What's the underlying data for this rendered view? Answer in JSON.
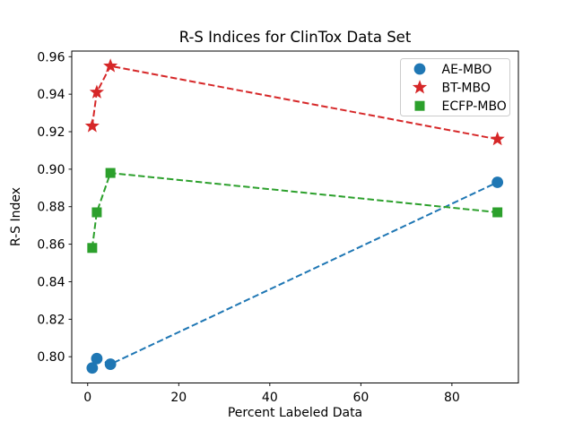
{
  "figure": {
    "background": "#ffffff"
  },
  "chart_data": {
    "type": "line",
    "title": "R-S Indices for ClinTox Data Set",
    "xlabel": "Percent Labeled Data",
    "ylabel": "R-S Index",
    "x": [
      1,
      2,
      5,
      90
    ],
    "series": [
      {
        "name": "AE-MBO",
        "color": "#1f77b4",
        "marker": "circle",
        "linestyle": "dashed",
        "values": [
          0.794,
          0.799,
          0.796,
          0.893
        ]
      },
      {
        "name": "BT-MBO",
        "color": "#d62728",
        "marker": "star",
        "linestyle": "dashed",
        "values": [
          0.923,
          0.941,
          0.955,
          0.916
        ]
      },
      {
        "name": "ECFP-MBO",
        "color": "#2ca02c",
        "marker": "square",
        "linestyle": "dashed",
        "values": [
          0.858,
          0.877,
          0.898,
          0.877
        ]
      }
    ],
    "xlim": [
      -3.5,
      94.6
    ],
    "ylim": [
      0.786,
      0.963
    ],
    "xticks": [
      0,
      20,
      40,
      60,
      80
    ],
    "xtick_labels": [
      "0",
      "20",
      "40",
      "60",
      "80"
    ],
    "yticks": [
      0.8,
      0.82,
      0.84,
      0.86,
      0.88,
      0.9,
      0.92,
      0.94,
      0.96
    ],
    "ytick_labels": [
      "0.80",
      "0.82",
      "0.84",
      "0.86",
      "0.88",
      "0.90",
      "0.92",
      "0.94",
      "0.96"
    ],
    "grid": false,
    "legend": {
      "position": "upper right",
      "entries": [
        "AE-MBO",
        "BT-MBO",
        "ECFP-MBO"
      ]
    }
  }
}
